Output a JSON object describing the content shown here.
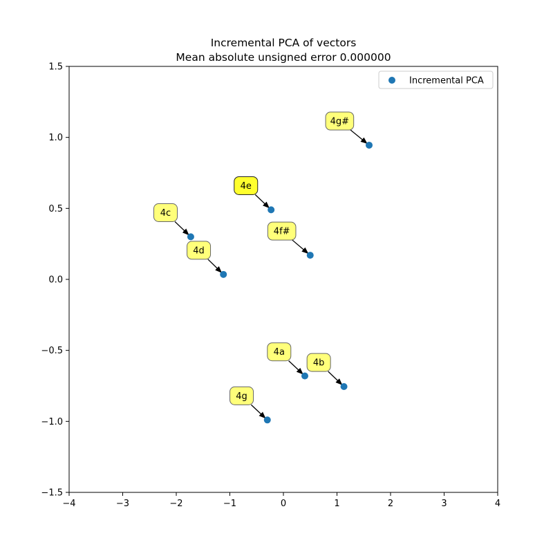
{
  "chart_data": {
    "type": "scatter",
    "title": "Incremental PCA of vectors",
    "subtitle": "Mean absolute unsigned error 0.000000",
    "xlabel": "",
    "ylabel": "",
    "xlim": [
      -4,
      4
    ],
    "ylim": [
      -1.5,
      1.5
    ],
    "xticks": [
      -4,
      -3,
      -2,
      -1,
      0,
      1,
      2,
      3,
      4
    ],
    "yticks": [
      -1.5,
      -1.0,
      -0.5,
      0.0,
      0.5,
      1.0,
      1.5
    ],
    "xtick_labels": [
      "−4",
      "−3",
      "−2",
      "−1",
      "0",
      "1",
      "2",
      "3",
      "4"
    ],
    "ytick_labels": [
      "−1.5",
      "−1.0",
      "−0.5",
      "0.0",
      "0.5",
      "1.0",
      "1.5"
    ],
    "grid": false,
    "legend": {
      "position": "top-right",
      "entries": [
        "Incremental PCA"
      ]
    },
    "series": [
      {
        "name": "Incremental PCA",
        "color": "#1f77b4",
        "points": [
          {
            "label": "4g#",
            "x": 1.6,
            "y": 0.945,
            "label_x": 1.05,
            "label_y": 1.115
          },
          {
            "label": "4e",
            "x": -0.23,
            "y": 0.49,
            "label_x": -0.7,
            "label_y": 0.66,
            "highlight": true
          },
          {
            "label": "4c",
            "x": -1.73,
            "y": 0.3,
            "label_x": -2.2,
            "label_y": 0.47
          },
          {
            "label": "4f#",
            "x": 0.5,
            "y": 0.17,
            "label_x": -0.03,
            "label_y": 0.34
          },
          {
            "label": "4d",
            "x": -1.12,
            "y": 0.035,
            "label_x": -1.58,
            "label_y": 0.205
          },
          {
            "label": "4a",
            "x": 0.4,
            "y": -0.68,
            "label_x": -0.08,
            "label_y": -0.51
          },
          {
            "label": "4b",
            "x": 1.13,
            "y": -0.755,
            "label_x": 0.66,
            "label_y": -0.585
          },
          {
            "label": "4g",
            "x": -0.3,
            "y": -0.99,
            "label_x": -0.78,
            "label_y": -0.82
          }
        ]
      }
    ]
  },
  "colors": {
    "marker": "#1f77b4",
    "label_box": "#ffff7a",
    "label_box_highlight": "#ffff2e"
  }
}
